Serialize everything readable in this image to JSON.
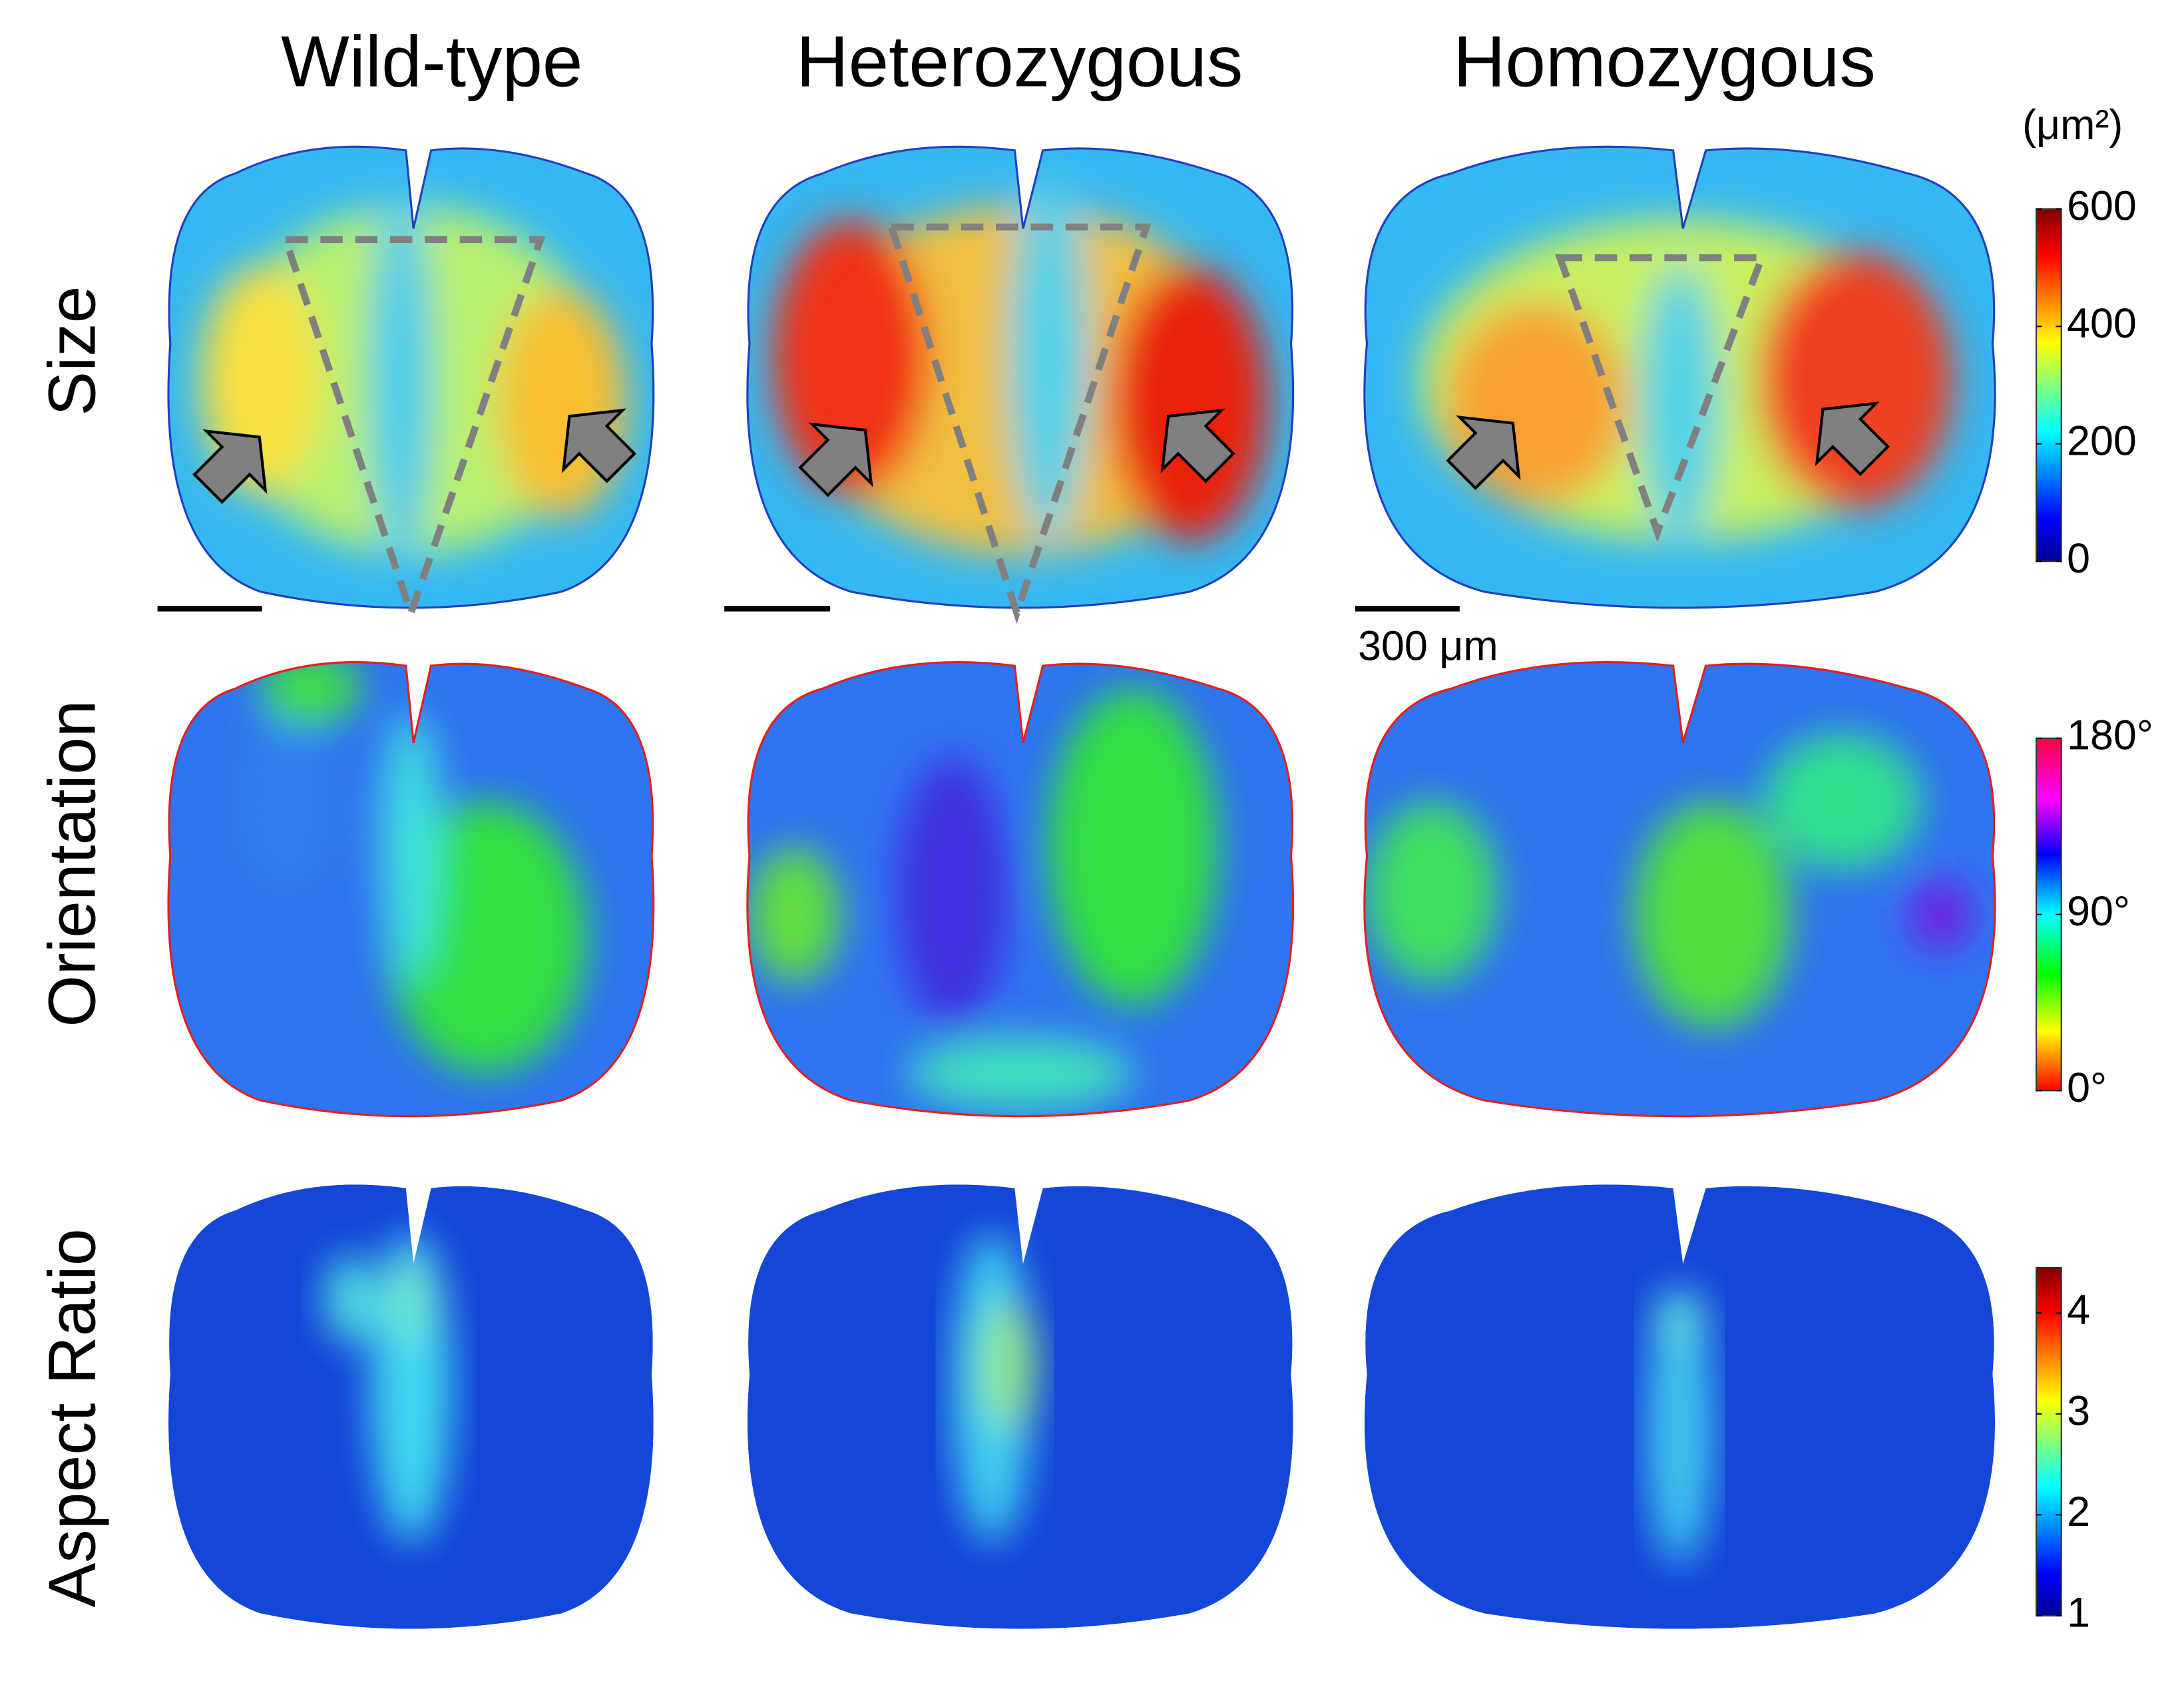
{
  "columns": [
    "Wild-type",
    "Heterozygous",
    "Homozygous"
  ],
  "rows": [
    "Size",
    "Orientation",
    "Aspect Ratio"
  ],
  "colorbars": [
    {
      "unit": "(μm²)",
      "range": [
        0,
        600
      ],
      "ticks": [
        0,
        200,
        400,
        600
      ]
    },
    {
      "range": [
        0,
        180
      ],
      "ticks": [
        {
          "value": 0,
          "label": "0°"
        },
        {
          "value": 90,
          "label": "90°"
        },
        {
          "value": 180,
          "label": "180°"
        }
      ]
    },
    {
      "range": [
        1,
        4.45
      ],
      "ticks": [
        1,
        2,
        3,
        4
      ]
    }
  ],
  "scale_bar": "300 μm"
}
